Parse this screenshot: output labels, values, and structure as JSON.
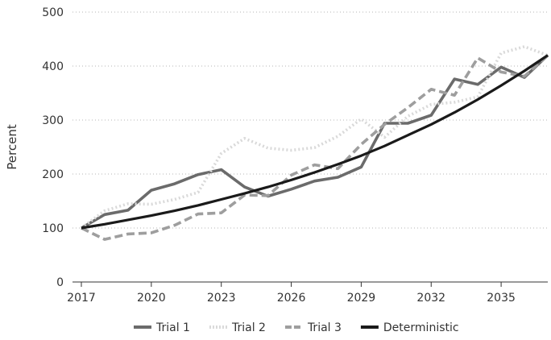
{
  "chart_data": {
    "type": "line",
    "title": "",
    "xlabel": "",
    "ylabel": "Percent",
    "ylim": [
      0,
      500
    ],
    "xlim": [
      2017,
      2037
    ],
    "y_ticks": [
      0,
      100,
      200,
      300,
      400,
      500
    ],
    "x_ticks": [
      2017,
      2020,
      2023,
      2026,
      2029,
      2032,
      2035
    ],
    "grid": "horizontal-dotted",
    "legend_position": "bottom",
    "x": [
      2017,
      2018,
      2019,
      2020,
      2021,
      2022,
      2023,
      2024,
      2025,
      2026,
      2027,
      2028,
      2029,
      2030,
      2031,
      2032,
      2033,
      2034,
      2035,
      2036,
      2037
    ],
    "series": [
      {
        "name": "Trial 1",
        "color": "#6b6b6b",
        "style": "solid",
        "values": [
          100,
          125,
          133,
          170,
          182,
          199,
          208,
          176,
          159,
          172,
          187,
          194,
          213,
          294,
          294,
          309,
          376,
          366,
          398,
          379,
          420
        ]
      },
      {
        "name": "Trial 2",
        "color": "#d9d9d9",
        "style": "dotted",
        "values": [
          100,
          132,
          145,
          144,
          153,
          166,
          238,
          266,
          248,
          244,
          249,
          270,
          302,
          268,
          307,
          329,
          333,
          343,
          424,
          436,
          420
        ]
      },
      {
        "name": "Trial 3",
        "color": "#9e9e9e",
        "style": "dashed",
        "values": [
          100,
          79,
          89,
          91,
          105,
          126,
          128,
          161,
          160,
          198,
          217,
          210,
          255,
          292,
          323,
          357,
          346,
          415,
          389,
          381,
          420
        ]
      },
      {
        "name": "Deterministic",
        "color": "#1a1a1a",
        "style": "solid",
        "values": [
          100,
          107,
          115,
          123,
          132,
          142,
          153,
          164,
          176,
          189,
          203,
          218,
          234,
          252,
          272,
          292,
          314,
          338,
          364,
          391,
          420
        ]
      }
    ]
  }
}
